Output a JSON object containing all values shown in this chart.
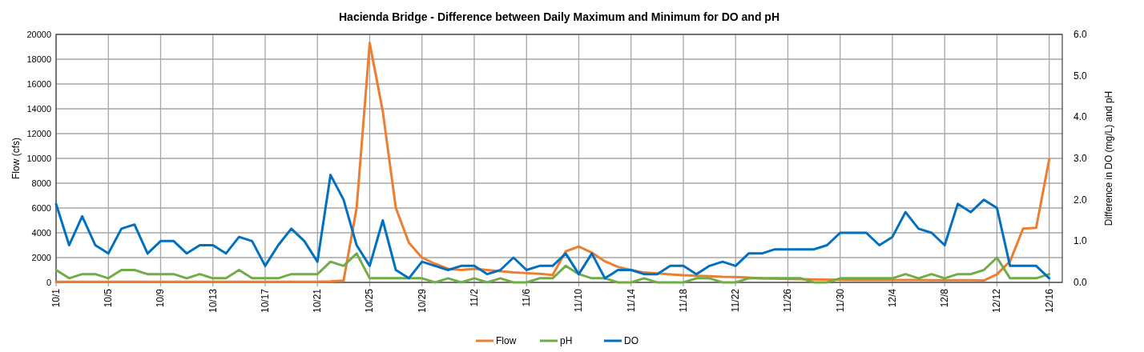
{
  "chart_data": {
    "type": "line",
    "title": "Hacienda Bridge - Difference between Daily Maximum and Minimum for DO and pH",
    "ylabel": "Flow (cfs)",
    "y2label": "Difference in DO (mg/L) and pH",
    "x": [
      "--10-01",
      "--10-02",
      "--10-03",
      "--10-04",
      "--10-05",
      "--10-06",
      "--10-07",
      "--10-08",
      "--10-09",
      "--10-10",
      "--10-11",
      "--10-12",
      "--10-13",
      "--10-14",
      "--10-15",
      "--10-16",
      "--10-17",
      "--10-18",
      "--10-19",
      "--10-20",
      "--10-21",
      "--10-22",
      "--10-23",
      "--10-24",
      "--10-25",
      "--10-26",
      "--10-27",
      "--10-28",
      "--10-29",
      "--10-30",
      "--10-31",
      "--11-01",
      "--11-02",
      "--11-03",
      "--11-04",
      "--11-05",
      "--11-06",
      "--11-07",
      "--11-08",
      "--11-09",
      "--11-10",
      "--11-11",
      "--11-12",
      "--11-13",
      "--11-14",
      "--11-15",
      "--11-16",
      "--11-17",
      "--11-18",
      "--11-19",
      "--11-20",
      "--11-21",
      "--11-22",
      "--11-23",
      "--11-24",
      "--11-25",
      "--11-26",
      "--11-27",
      "--11-28",
      "--11-29",
      "--11-30",
      "--12-01",
      "--12-02",
      "--12-03",
      "--12-04",
      "--12-05",
      "--12-06",
      "--12-07",
      "--12-08",
      "--12-09",
      "--12-10",
      "--12-11",
      "--12-12",
      "--12-13",
      "--12-14",
      "--12-15",
      "--12-16"
    ],
    "series": [
      {
        "name": "Flow",
        "color": "#ed7d31",
        "values": [
          50,
          50,
          50,
          50,
          50,
          50,
          50,
          50,
          50,
          50,
          50,
          50,
          50,
          50,
          50,
          50,
          50,
          50,
          50,
          50,
          50,
          80,
          150,
          6000,
          19300,
          13800,
          6000,
          3200,
          2000,
          1500,
          1100,
          1000,
          1100,
          1000,
          900,
          800,
          750,
          700,
          600,
          2500,
          2900,
          2400,
          1700,
          1250,
          1000,
          800,
          730,
          650,
          580,
          540,
          500,
          450,
          430,
          390,
          320,
          300,
          280,
          260,
          240,
          220,
          210,
          200,
          200,
          200,
          200,
          190,
          190,
          180,
          180,
          170,
          170,
          160,
          650,
          1700,
          4340,
          4400,
          9930
        ]
      },
      {
        "name": "pH",
        "color": "#70ad47",
        "axis": "y2",
        "values": [
          0.3,
          0.1,
          0.2,
          0.2,
          0.1,
          0.3,
          0.3,
          0.2,
          0.2,
          0.2,
          0.1,
          0.2,
          0.1,
          0.1,
          0.3,
          0.1,
          0.1,
          0.1,
          0.2,
          0.2,
          0.2,
          0.5,
          0.4,
          0.7,
          0.1,
          0.1,
          0.1,
          0.1,
          0.1,
          0.0,
          0.1,
          0.0,
          0.1,
          0.0,
          0.1,
          0.0,
          0.0,
          0.1,
          0.1,
          0.4,
          0.2,
          0.1,
          0.1,
          0.0,
          0.0,
          0.1,
          0.0,
          0.0,
          0.0,
          0.1,
          0.1,
          0.0,
          0.0,
          0.1,
          0.1,
          0.1,
          0.1,
          0.1,
          0.0,
          0.0,
          0.1,
          0.1,
          0.1,
          0.1,
          0.1,
          0.2,
          0.1,
          0.2,
          0.1,
          0.2,
          0.2,
          0.3,
          0.6,
          0.1,
          0.1,
          0.1,
          0.2
        ]
      },
      {
        "name": "DO",
        "color": "#0070c0",
        "axis": "y2",
        "values": [
          1.9,
          0.9,
          1.6,
          0.9,
          0.7,
          1.3,
          1.4,
          0.7,
          1.0,
          1.0,
          0.7,
          0.9,
          0.9,
          0.7,
          1.1,
          1.0,
          0.4,
          0.9,
          1.3,
          1.0,
          0.5,
          2.6,
          2.0,
          0.9,
          0.4,
          1.5,
          0.3,
          0.1,
          0.5,
          0.4,
          0.3,
          0.4,
          0.4,
          0.2,
          0.3,
          0.6,
          0.3,
          0.4,
          0.4,
          0.7,
          0.2,
          0.7,
          0.1,
          0.3,
          0.3,
          0.2,
          0.2,
          0.4,
          0.4,
          0.2,
          0.4,
          0.5,
          0.4,
          0.7,
          0.7,
          0.8,
          0.8,
          0.8,
          0.8,
          0.9,
          1.2,
          1.2,
          1.2,
          0.9,
          1.1,
          1.7,
          1.3,
          1.2,
          0.9,
          1.9,
          1.7,
          2.0,
          1.8,
          0.4,
          0.4,
          0.4,
          0.1
        ]
      }
    ],
    "xlim": [
      "--10-01",
      "--12-17"
    ],
    "xticks": [
      {
        "value": "--10-01",
        "label": "10/1"
      },
      {
        "value": "--10-05",
        "label": "10/5"
      },
      {
        "value": "--10-09",
        "label": "10/9"
      },
      {
        "value": "--10-13",
        "label": "10/13"
      },
      {
        "value": "--10-17",
        "label": "10/17"
      },
      {
        "value": "--10-21",
        "label": "10/21"
      },
      {
        "value": "--10-25",
        "label": "10/25"
      },
      {
        "value": "--10-29",
        "label": "10/29"
      },
      {
        "value": "--11-02",
        "label": "11/2"
      },
      {
        "value": "--11-06",
        "label": "11/6"
      },
      {
        "value": "--11-10",
        "label": "11/10"
      },
      {
        "value": "--11-14",
        "label": "11/14"
      },
      {
        "value": "--11-18",
        "label": "11/18"
      },
      {
        "value": "--11-22",
        "label": "11/22"
      },
      {
        "value": "--11-26",
        "label": "11/26"
      },
      {
        "value": "--11-30",
        "label": "11/30"
      },
      {
        "value": "--12-04",
        "label": "12/4"
      },
      {
        "value": "--12-08",
        "label": "12/8"
      },
      {
        "value": "--12-12",
        "label": "12/12"
      },
      {
        "value": "--12-16",
        "label": "12/16"
      }
    ],
    "ylim": [
      0,
      20000
    ],
    "yticks": [
      0,
      2000,
      4000,
      6000,
      8000,
      10000,
      12000,
      14000,
      16000,
      18000,
      20000
    ],
    "y2lim": [
      0,
      6
    ],
    "y2ticks": [
      {
        "value": 0,
        "label": "0.0"
      },
      {
        "value": 1,
        "label": "1.0"
      },
      {
        "value": 2,
        "label": "2.0"
      },
      {
        "value": 3,
        "label": "3.0"
      },
      {
        "value": 4,
        "label": "4.0"
      },
      {
        "value": 5,
        "label": "5.0"
      },
      {
        "value": 6,
        "label": "6.0"
      }
    ],
    "grid": true,
    "legend": "bottom",
    "marker": "none",
    "line_style": "solid"
  }
}
